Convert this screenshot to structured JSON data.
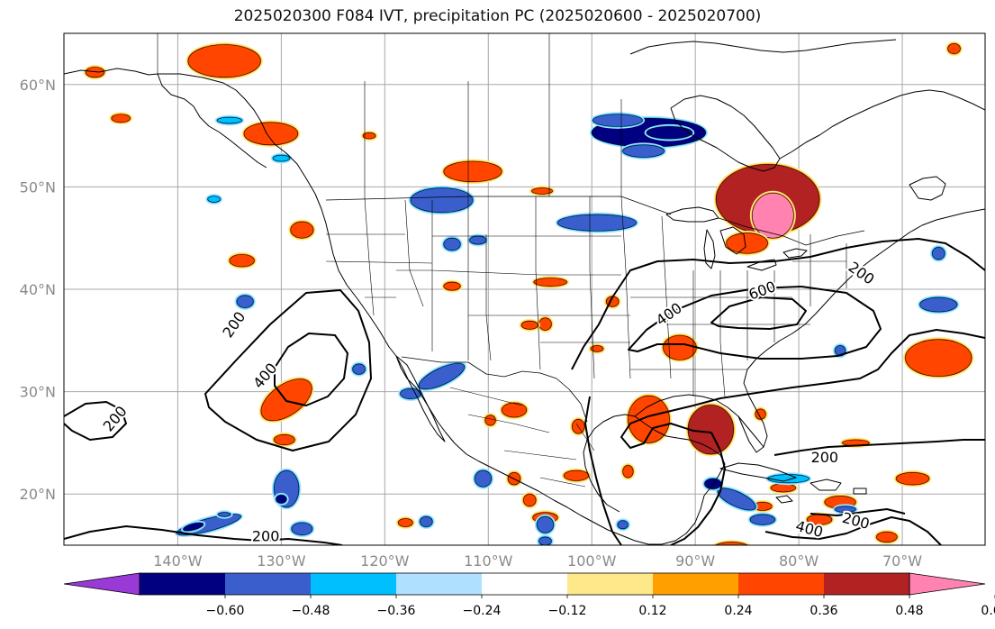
{
  "title": "2025020300 F084 IVT, precipitation PC (2025020600 - 2025020700)",
  "map": {
    "lon_range": [
      -151,
      -62
    ],
    "lat_range": [
      15,
      65
    ],
    "lon_ticks": [
      {
        "lon": -140,
        "label": "140°W"
      },
      {
        "lon": -130,
        "label": "130°W"
      },
      {
        "lon": -120,
        "label": "120°W"
      },
      {
        "lon": -110,
        "label": "110°W"
      },
      {
        "lon": -100,
        "label": "100°W"
      },
      {
        "lon": -90,
        "label": "90°W"
      },
      {
        "lon": -80,
        "label": "80°W"
      },
      {
        "lon": -70,
        "label": "70°W"
      }
    ],
    "lat_ticks": [
      {
        "lat": 20,
        "label": "20°N"
      },
      {
        "lat": 30,
        "label": "30°N"
      },
      {
        "lat": 40,
        "label": "40°N"
      },
      {
        "lat": 50,
        "label": "50°N"
      },
      {
        "lat": 60,
        "label": "60°N"
      }
    ]
  },
  "colorbar": {
    "colors": [
      "#9a3ad6",
      "#000080",
      "#3a5fcd",
      "#00bfff",
      "#b0e0ff",
      "#ffffff",
      "#ffe88a",
      "#ffa000",
      "#ff4500",
      "#b22222",
      "#ff82b0"
    ],
    "tick_labels": [
      "−0.60",
      "−0.48",
      "−0.36",
      "−0.24",
      "−0.12",
      "0.12",
      "0.24",
      "0.36",
      "0.48",
      "0.60"
    ]
  },
  "ivt_labels": [
    {
      "text": "200",
      "lon": -134.5,
      "lat": 36.5,
      "rot": -55
    },
    {
      "text": "400",
      "lon": -131.5,
      "lat": 31.5,
      "rot": -50
    },
    {
      "text": "200",
      "lon": -146,
      "lat": 27.3,
      "rot": -50
    },
    {
      "text": "200",
      "lon": -131.5,
      "lat": 15.8,
      "rot": 0
    },
    {
      "text": "400",
      "lon": -92.5,
      "lat": 37.5,
      "rot": -35
    },
    {
      "text": "600",
      "lon": -83.5,
      "lat": 39.8,
      "rot": -20
    },
    {
      "text": "200",
      "lon": -74,
      "lat": 41.5,
      "rot": 35
    },
    {
      "text": "200",
      "lon": -77.5,
      "lat": 23.5,
      "rot": 0
    },
    {
      "text": "400",
      "lon": -79,
      "lat": 16.5,
      "rot": 15
    },
    {
      "text": "200",
      "lon": -74.5,
      "lat": 17.3,
      "rot": 15
    }
  ],
  "precip_pc_areas": [
    {
      "lon": -135.5,
      "lat": 62.3,
      "rx": 3.5,
      "ry": 1.6,
      "value": 0.4
    },
    {
      "lon": -148,
      "lat": 61.2,
      "rx": 0.9,
      "ry": 0.5,
      "value": 0.4
    },
    {
      "lon": -131,
      "lat": 55.2,
      "rx": 2.6,
      "ry": 1.1,
      "value": 0.4
    },
    {
      "lon": -145.5,
      "lat": 56.7,
      "rx": 0.9,
      "ry": 0.4,
      "value": 0.4
    },
    {
      "lon": -111.5,
      "lat": 51.5,
      "rx": 2.8,
      "ry": 1.0,
      "value": 0.4
    },
    {
      "lon": -83,
      "lat": 48.8,
      "rx": 5.0,
      "ry": 3.4,
      "value": 0.5
    },
    {
      "lon": -82.5,
      "lat": 47.2,
      "rx": 2.0,
      "ry": 2.2,
      "value": 0.65
    },
    {
      "lon": -85,
      "lat": 44.5,
      "rx": 2.0,
      "ry": 1.0,
      "value": 0.45
    },
    {
      "lon": -128,
      "lat": 45.8,
      "rx": 1.1,
      "ry": 0.8,
      "value": 0.45
    },
    {
      "lon": -133.8,
      "lat": 42.8,
      "rx": 1.2,
      "ry": 0.6,
      "value": 0.4
    },
    {
      "lon": -129.5,
      "lat": 29.2,
      "rx": 2.8,
      "ry": 1.5,
      "rot": -35,
      "value": 0.45
    },
    {
      "lon": -129.7,
      "lat": 25.3,
      "rx": 1.0,
      "ry": 0.5,
      "value": 0.4
    },
    {
      "lon": -94.5,
      "lat": 27.3,
      "rx": 2.0,
      "ry": 2.3,
      "value": 0.4
    },
    {
      "lon": -88.5,
      "lat": 26.3,
      "rx": 2.2,
      "ry": 2.4,
      "value": 0.5
    },
    {
      "lon": -91.5,
      "lat": 34.3,
      "rx": 1.6,
      "ry": 1.2,
      "value": 0.45
    },
    {
      "lon": -66.5,
      "lat": 33.3,
      "rx": 3.2,
      "ry": 1.8,
      "value": 0.4
    },
    {
      "lon": -69,
      "lat": 21.5,
      "rx": 1.6,
      "ry": 0.6,
      "value": 0.45
    },
    {
      "lon": -104,
      "lat": 40.7,
      "rx": 1.6,
      "ry": 0.4,
      "value": 0.4
    },
    {
      "lon": -107.5,
      "lat": 28.2,
      "rx": 1.2,
      "ry": 0.7,
      "value": 0.4
    },
    {
      "lon": -104.5,
      "lat": 17.7,
      "rx": 1.2,
      "ry": 0.5,
      "value": 0.4
    },
    {
      "lon": -101.3,
      "lat": 26.6,
      "rx": 0.6,
      "ry": 0.7,
      "value": 0.4
    },
    {
      "lon": -78,
      "lat": 17.5,
      "rx": 1.2,
      "ry": 0.5,
      "value": 0.4
    },
    {
      "lon": -76,
      "lat": 19.2,
      "rx": 1.5,
      "ry": 0.6,
      "value": 0.4
    },
    {
      "lon": -71.5,
      "lat": 15.8,
      "rx": 1.0,
      "ry": 0.5,
      "value": 0.4
    },
    {
      "lon": -86.5,
      "lat": 14.5,
      "rx": 2.0,
      "ry": 0.8,
      "value": 0.4
    },
    {
      "lon": -118,
      "lat": 17.2,
      "rx": 0.7,
      "ry": 0.4,
      "value": 0.4
    },
    {
      "lon": -104.5,
      "lat": 36.6,
      "rx": 0.6,
      "ry": 0.6,
      "value": 0.4
    },
    {
      "lon": -98,
      "lat": 38.8,
      "rx": 0.6,
      "ry": 0.5,
      "value": 0.4
    },
    {
      "lon": -99.5,
      "lat": 34.2,
      "rx": 0.6,
      "ry": 0.3,
      "value": 0.4
    },
    {
      "lon": -101.5,
      "lat": 21.8,
      "rx": 1.2,
      "ry": 0.5,
      "value": 0.4
    },
    {
      "lon": -96.5,
      "lat": 22.2,
      "rx": 0.5,
      "ry": 0.6,
      "value": 0.4
    },
    {
      "lon": -106,
      "lat": 19.4,
      "rx": 0.6,
      "ry": 0.6,
      "value": 0.4
    },
    {
      "lon": -74.5,
      "lat": 25.0,
      "rx": 1.3,
      "ry": 0.3,
      "value": 0.4
    },
    {
      "lon": -83.5,
      "lat": 18.8,
      "rx": 0.9,
      "ry": 0.4,
      "value": 0.4
    },
    {
      "lon": -106,
      "lat": 36.5,
      "rx": 0.8,
      "ry": 0.4,
      "value": 0.4
    },
    {
      "lon": -113.5,
      "lat": 40.3,
      "rx": 0.8,
      "ry": 0.4,
      "value": 0.4
    },
    {
      "lon": -121.5,
      "lat": 55.0,
      "rx": 0.6,
      "ry": 0.3,
      "value": 0.4
    },
    {
      "lon": -104.8,
      "lat": 49.6,
      "rx": 1.0,
      "ry": 0.3,
      "value": 0.4
    },
    {
      "lon": -83.7,
      "lat": 27.8,
      "rx": 0.5,
      "ry": 0.5,
      "value": 0.4
    },
    {
      "lon": -107.5,
      "lat": 21.5,
      "rx": 0.6,
      "ry": 0.6,
      "value": 0.4
    },
    {
      "lon": -109.8,
      "lat": 27.2,
      "rx": 0.5,
      "ry": 0.5,
      "value": 0.4
    },
    {
      "lon": -81.5,
      "lat": 20.6,
      "rx": 1.2,
      "ry": 0.4,
      "value": 0.4
    },
    {
      "lon": -89,
      "lat": 14.3,
      "rx": 0.8,
      "ry": 0.4,
      "value": 0.4
    },
    {
      "lon": -65,
      "lat": 63.5,
      "rx": 0.6,
      "ry": 0.5,
      "value": 0.4
    },
    {
      "lon": -94.5,
      "lat": 55.3,
      "rx": 5.5,
      "ry": 1.4,
      "value": -0.5
    },
    {
      "lon": -92.5,
      "lat": 55.3,
      "rx": 2.2,
      "ry": 0.6,
      "value": -0.58
    },
    {
      "lon": -95,
      "lat": 53.5,
      "rx": 2.0,
      "ry": 0.6,
      "value": -0.42
    },
    {
      "lon": -97.5,
      "lat": 56.5,
      "rx": 2.4,
      "ry": 0.6,
      "value": -0.42
    },
    {
      "lon": -114.5,
      "lat": 48.7,
      "rx": 3.0,
      "ry": 1.2,
      "value": -0.42
    },
    {
      "lon": -99.5,
      "lat": 46.5,
      "rx": 3.8,
      "ry": 0.8,
      "value": -0.42
    },
    {
      "lon": -113.5,
      "lat": 44.4,
      "rx": 0.8,
      "ry": 0.6,
      "value": -0.42
    },
    {
      "lon": -114.5,
      "lat": 31.5,
      "rx": 2.4,
      "ry": 0.8,
      "rot": -25,
      "value": -0.42
    },
    {
      "lon": -117.5,
      "lat": 29.8,
      "rx": 1.0,
      "ry": 0.5,
      "value": -0.38
    },
    {
      "lon": -129.5,
      "lat": 20.5,
      "rx": 1.2,
      "ry": 1.8,
      "value": -0.42
    },
    {
      "lon": -130,
      "lat": 19.5,
      "rx": 0.5,
      "ry": 0.4,
      "value": -0.55
    },
    {
      "lon": -128,
      "lat": 16.6,
      "rx": 1.0,
      "ry": 0.6,
      "value": -0.42
    },
    {
      "lon": -137,
      "lat": 17.0,
      "rx": 3.2,
      "ry": 0.6,
      "rot": -15,
      "value": -0.42
    },
    {
      "lon": -138.5,
      "lat": 16.8,
      "rx": 1.0,
      "ry": 0.3,
      "rot": -15,
      "value": -0.55
    },
    {
      "lon": -135.5,
      "lat": 18.0,
      "rx": 0.6,
      "ry": 0.2,
      "value": -0.42
    },
    {
      "lon": -86,
      "lat": 19.5,
      "rx": 2.0,
      "ry": 0.7,
      "rot": 25,
      "value": -0.42
    },
    {
      "lon": -88.3,
      "lat": 21.0,
      "rx": 0.8,
      "ry": 0.5,
      "value": -0.55
    },
    {
      "lon": -83.5,
      "lat": 17.5,
      "rx": 1.2,
      "ry": 0.5,
      "value": -0.42
    },
    {
      "lon": -75.5,
      "lat": 18.5,
      "rx": 1.0,
      "ry": 0.3,
      "value": -0.42
    },
    {
      "lon": -66.5,
      "lat": 38.5,
      "rx": 1.8,
      "ry": 0.7,
      "value": -0.42
    },
    {
      "lon": -81,
      "lat": 21.5,
      "rx": 2.0,
      "ry": 0.4,
      "value": -0.3
    },
    {
      "lon": -104.5,
      "lat": 17.0,
      "rx": 0.8,
      "ry": 0.8,
      "value": -0.42
    },
    {
      "lon": -110.5,
      "lat": 21.5,
      "rx": 0.8,
      "ry": 0.8,
      "value": -0.42
    },
    {
      "lon": -116,
      "lat": 17.3,
      "rx": 0.6,
      "ry": 0.5,
      "value": -0.42
    },
    {
      "lon": -135,
      "lat": 56.5,
      "rx": 1.2,
      "ry": 0.3,
      "value": -0.3
    },
    {
      "lon": -133.5,
      "lat": 38.8,
      "rx": 0.8,
      "ry": 0.6,
      "value": -0.42
    },
    {
      "lon": -111,
      "lat": 44.8,
      "rx": 0.8,
      "ry": 0.4,
      "value": -0.42
    },
    {
      "lon": -122.5,
      "lat": 32.2,
      "rx": 0.6,
      "ry": 0.5,
      "value": -0.42
    },
    {
      "lon": -76,
      "lat": 34.0,
      "rx": 0.5,
      "ry": 0.5,
      "value": -0.42
    },
    {
      "lon": -66.5,
      "lat": 43.5,
      "rx": 0.6,
      "ry": 0.6,
      "value": -0.42
    },
    {
      "lon": -104.5,
      "lat": 15.4,
      "rx": 0.6,
      "ry": 0.4,
      "value": -0.42
    },
    {
      "lon": -97.0,
      "lat": 17.0,
      "rx": 0.5,
      "ry": 0.4,
      "value": -0.42
    },
    {
      "lon": -136.5,
      "lat": 48.8,
      "rx": 0.6,
      "ry": 0.3,
      "value": -0.3
    },
    {
      "lon": -130.0,
      "lat": 52.8,
      "rx": 0.8,
      "ry": 0.3,
      "value": -0.3
    }
  ]
}
